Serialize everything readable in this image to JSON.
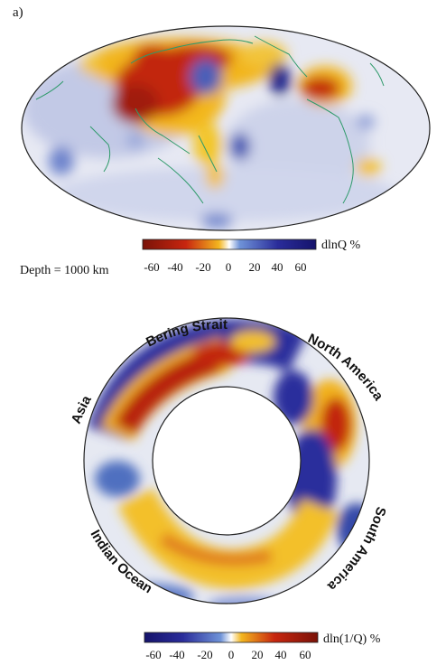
{
  "panel_label": "a)",
  "map": {
    "depth_label": "Depth = 1000 km",
    "colorbar": {
      "unit": "dlnQ %",
      "ticks": [
        "-60",
        "-40",
        "-20",
        "0",
        "20",
        "40",
        "60"
      ],
      "colors": [
        "#7a1208",
        "#c8260f",
        "#f0a21a",
        "#ffffff",
        "#5a7fd0",
        "#2a2c9a",
        "#15136b"
      ]
    }
  },
  "cross_section": {
    "labels": {
      "bering": "Bering Strait",
      "north_america": "North America",
      "asia": "Asia",
      "south_america": "South America",
      "indian_ocean": "Indian Ocean"
    },
    "colorbar": {
      "unit": "dln(1/Q) %",
      "ticks": [
        "-60",
        "-40",
        "-20",
        "0",
        "20",
        "40",
        "60"
      ],
      "colors": [
        "#15136b",
        "#2a2c9a",
        "#5a7fd0",
        "#ffffff",
        "#f0a21a",
        "#c8260f",
        "#7a1208"
      ]
    }
  }
}
